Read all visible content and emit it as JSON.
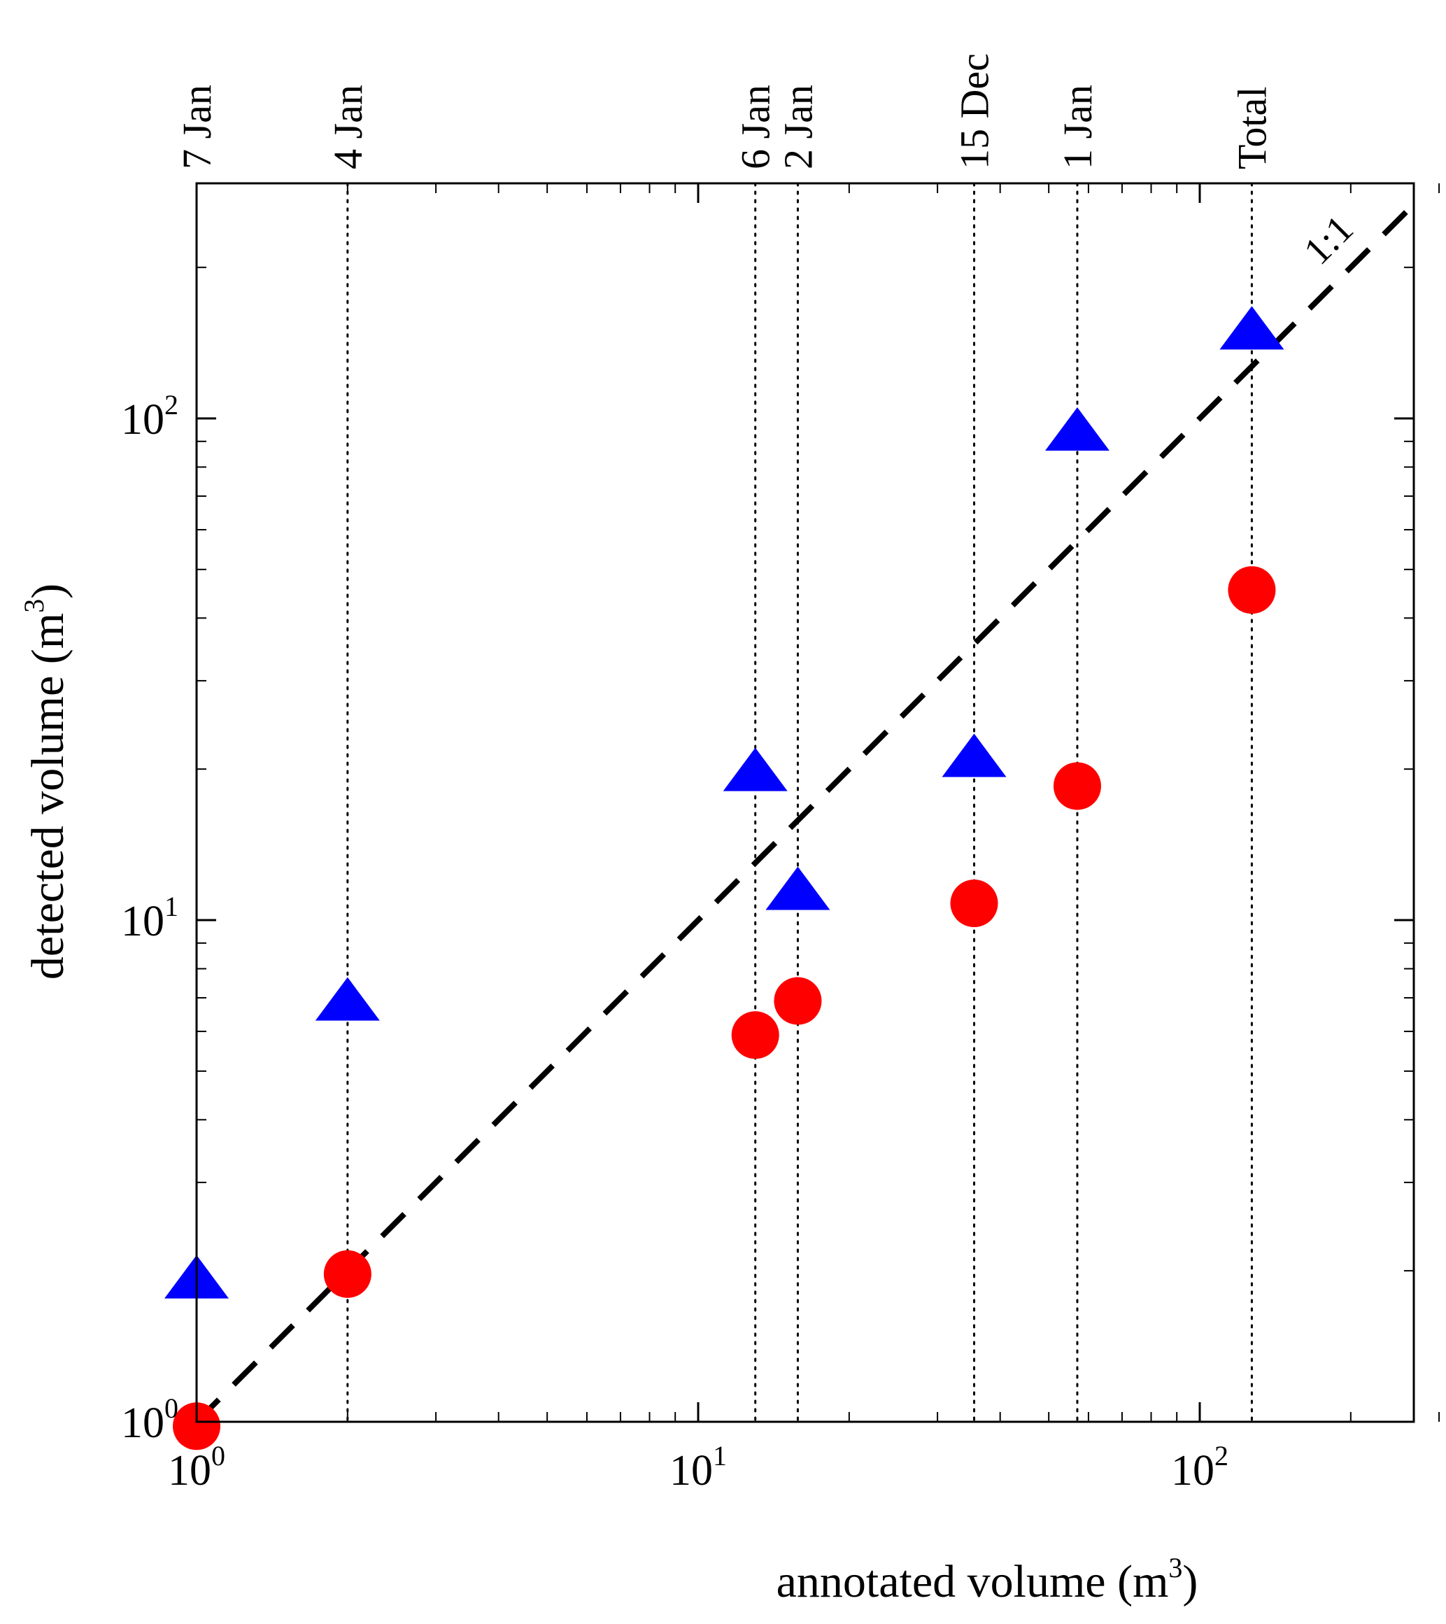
{
  "chart_data": {
    "type": "scatter",
    "title": "",
    "xlabel": "annotated volume (m",
    "xlabel_sup": "3",
    "xlabel_close": ")",
    "ylabel": "detected volume (m",
    "ylabel_sup": "3",
    "ylabel_close": ")",
    "x_scale": "log",
    "y_scale": "log",
    "xlim": [
      1,
      340
    ],
    "ylim": [
      1,
      260
    ],
    "x_ticks": [
      {
        "base": "10",
        "exp": "0",
        "value": 1
      },
      {
        "base": "10",
        "exp": "1",
        "value": 10
      },
      {
        "base": "10",
        "exp": "2",
        "value": 100
      }
    ],
    "y_ticks": [
      {
        "base": "10",
        "exp": "0",
        "value": 1
      },
      {
        "base": "10",
        "exp": "1",
        "value": 10
      },
      {
        "base": "10",
        "exp": "2",
        "value": 100
      }
    ],
    "grid": false,
    "events": [
      {
        "label": "7 Jan",
        "x": 1.0
      },
      {
        "label": "4 Jan",
        "x": 2.0
      },
      {
        "label": "6 Jan",
        "x": 13.0
      },
      {
        "label": "2 Jan",
        "x": 15.8
      },
      {
        "label": "15 Dec",
        "x": 35.5
      },
      {
        "label": "1 Jan",
        "x": 57.0
      },
      {
        "label": "Total",
        "x": 127.0
      }
    ],
    "series": [
      {
        "marker": "triangle",
        "color": "#0000ff",
        "points": [
          {
            "x": 1.0,
            "y": 1.9
          },
          {
            "x": 2.0,
            "y": 6.8
          },
          {
            "x": 13.0,
            "y": 19.5
          },
          {
            "x": 15.8,
            "y": 11.3
          },
          {
            "x": 35.5,
            "y": 20.8
          },
          {
            "x": 57.0,
            "y": 93.0
          },
          {
            "x": 127.0,
            "y": 148.0
          }
        ]
      },
      {
        "marker": "circle",
        "color": "#ff0000",
        "points": [
          {
            "x": 1.0,
            "y": 0.98
          },
          {
            "x": 2.0,
            "y": 1.97
          },
          {
            "x": 13.0,
            "y": 5.9
          },
          {
            "x": 15.8,
            "y": 6.9
          },
          {
            "x": 35.5,
            "y": 10.8
          },
          {
            "x": 57.0,
            "y": 18.5
          },
          {
            "x": 127.0,
            "y": 45.5
          }
        ]
      }
    ],
    "reference_line": {
      "label": "1:1",
      "style": "dashed",
      "color": "#000000"
    }
  }
}
